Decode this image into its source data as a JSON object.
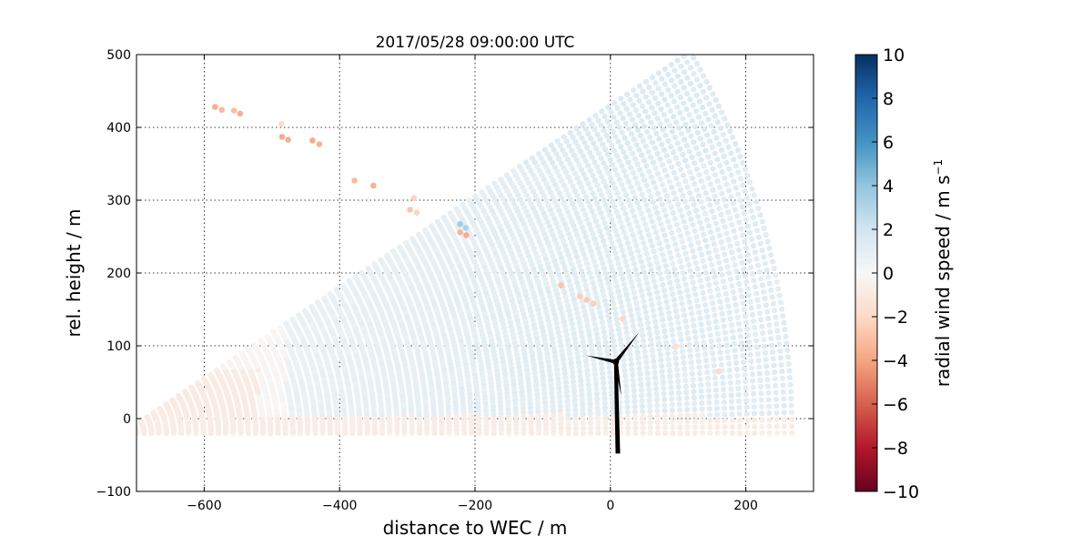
{
  "chart_data": {
    "type": "scatter",
    "title": "2017/05/28 09:00:00 UTC",
    "xlabel": "distance to WEC / m",
    "ylabel": "rel. height / m",
    "xlim": [
      -700,
      300
    ],
    "ylim": [
      -100,
      500
    ],
    "x_ticks": [
      "−600",
      "−400",
      "−200",
      "0",
      "200"
    ],
    "x_tick_values": [
      -600,
      -400,
      -200,
      0,
      200
    ],
    "y_ticks": [
      "−100",
      "0",
      "100",
      "200",
      "300",
      "400",
      "500"
    ],
    "y_tick_values": [
      -100,
      0,
      100,
      200,
      300,
      400,
      500
    ],
    "grid": true,
    "colorbar": {
      "label_main": "radial wind speed / m s",
      "label_sup": "−1",
      "range": [
        -10,
        10
      ],
      "ticks": [
        "10",
        "8",
        "6",
        "4",
        "2",
        "0",
        "−2",
        "−4",
        "−6",
        "−8",
        "−10"
      ],
      "tick_values": [
        10,
        8,
        6,
        4,
        2,
        0,
        -2,
        -4,
        -6,
        -8,
        -10
      ],
      "colormap": "RdBu"
    },
    "scan": {
      "origin": [
        -720,
        -20
      ],
      "angle_range_deg": [
        0,
        32
      ],
      "range_min": 20,
      "range_max": 995
    },
    "wind_turbine": {
      "hub": [
        8,
        78
      ],
      "tower_base": [
        11,
        -48
      ]
    },
    "outlier_points": [
      {
        "x": -584,
        "y": 428,
        "v": -3.6
      },
      {
        "x": -574,
        "y": 424,
        "v": -3.2
      },
      {
        "x": -556,
        "y": 423,
        "v": -3.0
      },
      {
        "x": -547,
        "y": 419,
        "v": -3.6
      },
      {
        "x": -486,
        "y": 405,
        "v": -1.8
      },
      {
        "x": -485,
        "y": 387,
        "v": -3.8
      },
      {
        "x": -476,
        "y": 383,
        "v": -3.6
      },
      {
        "x": -440,
        "y": 382,
        "v": -3.8
      },
      {
        "x": -430,
        "y": 377,
        "v": -3.5
      },
      {
        "x": -378,
        "y": 327,
        "v": -3.2
      },
      {
        "x": -350,
        "y": 320,
        "v": -3.5
      },
      {
        "x": -290,
        "y": 303,
        "v": -2.2
      },
      {
        "x": -296,
        "y": 287,
        "v": -2.8
      },
      {
        "x": -286,
        "y": 283,
        "v": -2.2
      },
      {
        "x": -222,
        "y": 267,
        "v": 3.5
      },
      {
        "x": -214,
        "y": 262,
        "v": 3.2
      },
      {
        "x": -222,
        "y": 256,
        "v": -3.4
      },
      {
        "x": -213,
        "y": 252,
        "v": -3.6
      },
      {
        "x": -73,
        "y": 183,
        "v": -2.8
      },
      {
        "x": -45,
        "y": 168,
        "v": -2.4
      },
      {
        "x": -35,
        "y": 163,
        "v": -2.6
      },
      {
        "x": -25,
        "y": 158,
        "v": -2.4
      },
      {
        "x": 18,
        "y": 137,
        "v": -2.0
      },
      {
        "x": 97,
        "y": 99,
        "v": -1.6
      },
      {
        "x": 160,
        "y": 65,
        "v": -1.8
      }
    ]
  }
}
